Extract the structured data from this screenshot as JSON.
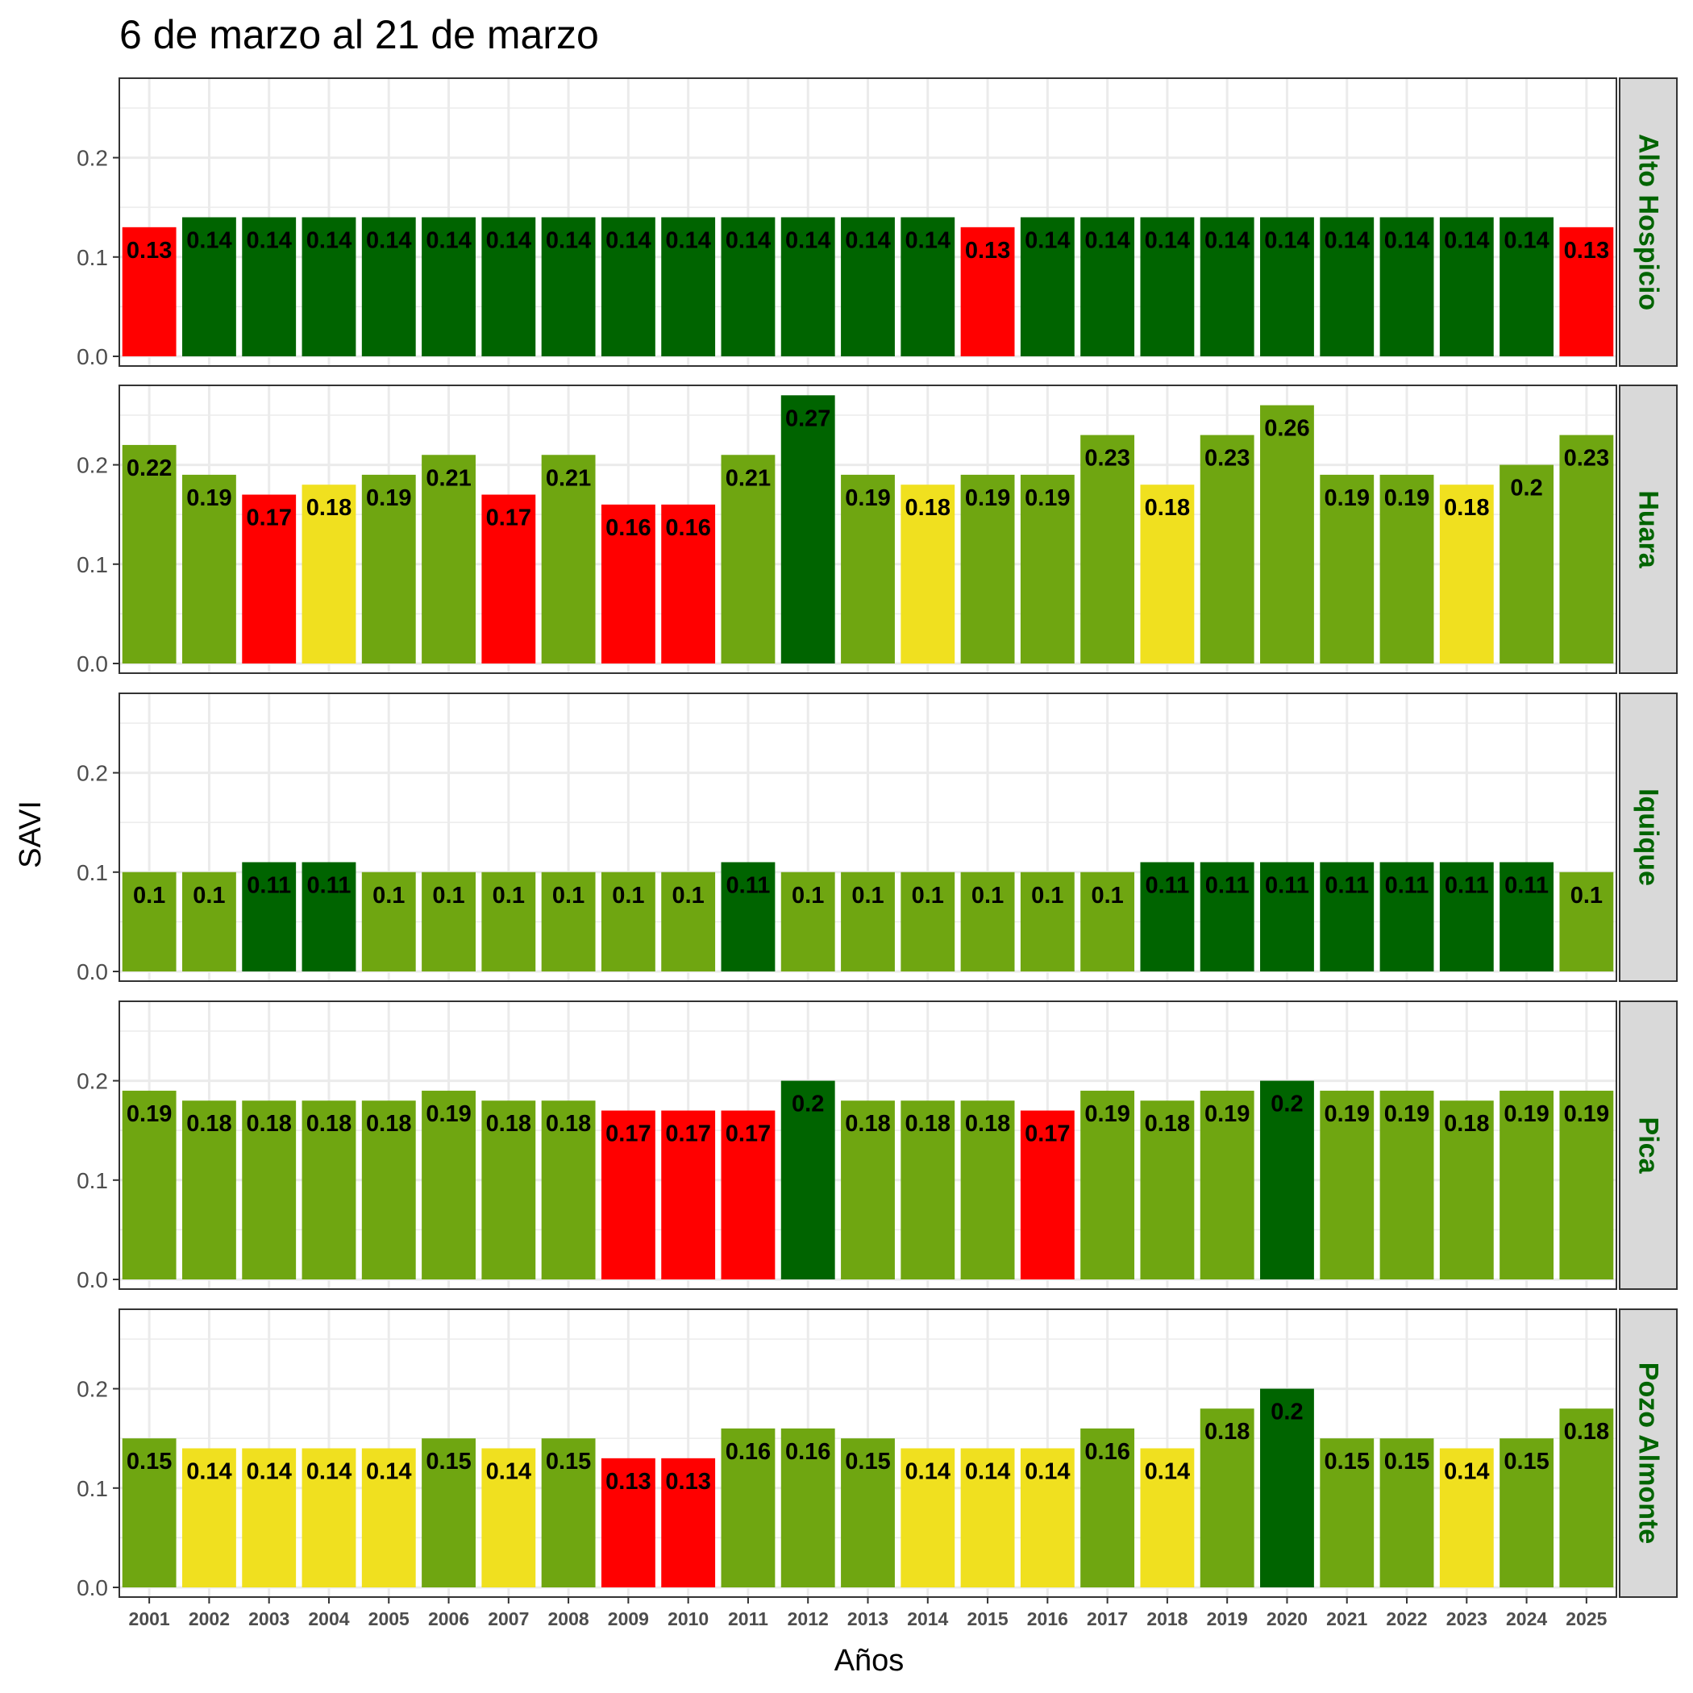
{
  "chart_data": {
    "type": "bar",
    "title": "6 de marzo al 21 de marzo",
    "xlabel": "Años",
    "ylabel": "SAVI",
    "ylim": [
      0,
      0.28
    ],
    "yticks": [
      "0.0",
      "0.1",
      "0.2"
    ],
    "ytick_values": [
      0,
      0.1,
      0.2
    ],
    "categories": [
      "2001",
      "2002",
      "2003",
      "2004",
      "2005",
      "2006",
      "2007",
      "2008",
      "2009",
      "2010",
      "2011",
      "2012",
      "2013",
      "2014",
      "2015",
      "2016",
      "2017",
      "2018",
      "2019",
      "2020",
      "2021",
      "2022",
      "2023",
      "2024",
      "2025"
    ],
    "grid": true,
    "colors": {
      "red": "#ff0000",
      "yellow": "#f0e01f",
      "light_green": "#6fa611",
      "dark_green": "#006400",
      "strip_bg": "#d9d9d9",
      "strip_text": "#006400",
      "grid": "#ebebeb",
      "panel_border": "#333333"
    },
    "series": [
      {
        "name": "Alto Hospicio",
        "values": [
          0.13,
          0.14,
          0.14,
          0.14,
          0.14,
          0.14,
          0.14,
          0.14,
          0.14,
          0.14,
          0.14,
          0.14,
          0.14,
          0.14,
          0.13,
          0.14,
          0.14,
          0.14,
          0.14,
          0.14,
          0.14,
          0.14,
          0.14,
          0.14,
          0.13
        ],
        "labels": [
          "0.13",
          "0.14",
          "0.14",
          "0.14",
          "0.14",
          "0.14",
          "0.14",
          "0.14",
          "0.14",
          "0.14",
          "0.14",
          "0.14",
          "0.14",
          "0.14",
          "0.13",
          "0.14",
          "0.14",
          "0.14",
          "0.14",
          "0.14",
          "0.14",
          "0.14",
          "0.14",
          "0.14",
          "0.13"
        ],
        "bar_colors": [
          "red",
          "dark_green",
          "dark_green",
          "dark_green",
          "dark_green",
          "dark_green",
          "dark_green",
          "dark_green",
          "dark_green",
          "dark_green",
          "dark_green",
          "dark_green",
          "dark_green",
          "dark_green",
          "red",
          "dark_green",
          "dark_green",
          "dark_green",
          "dark_green",
          "dark_green",
          "dark_green",
          "dark_green",
          "dark_green",
          "dark_green",
          "red"
        ]
      },
      {
        "name": "Huara",
        "values": [
          0.22,
          0.19,
          0.17,
          0.18,
          0.19,
          0.21,
          0.17,
          0.21,
          0.16,
          0.16,
          0.21,
          0.27,
          0.19,
          0.18,
          0.19,
          0.19,
          0.23,
          0.18,
          0.23,
          0.26,
          0.19,
          0.19,
          0.18,
          0.2,
          0.23
        ],
        "labels": [
          "0.22",
          "0.19",
          "0.17",
          "0.18",
          "0.19",
          "0.21",
          "0.17",
          "0.21",
          "0.16",
          "0.16",
          "0.21",
          "0.27",
          "0.19",
          "0.18",
          "0.19",
          "0.19",
          "0.23",
          "0.18",
          "0.23",
          "0.26",
          "0.19",
          "0.19",
          "0.18",
          "0.2",
          "0.23"
        ],
        "bar_colors": [
          "light_green",
          "light_green",
          "red",
          "yellow",
          "light_green",
          "light_green",
          "red",
          "light_green",
          "red",
          "red",
          "light_green",
          "dark_green",
          "light_green",
          "yellow",
          "light_green",
          "light_green",
          "light_green",
          "yellow",
          "light_green",
          "light_green",
          "light_green",
          "light_green",
          "yellow",
          "light_green",
          "light_green"
        ]
      },
      {
        "name": "Iquique",
        "values": [
          0.1,
          0.1,
          0.11,
          0.11,
          0.1,
          0.1,
          0.1,
          0.1,
          0.1,
          0.1,
          0.11,
          0.1,
          0.1,
          0.1,
          0.1,
          0.1,
          0.1,
          0.11,
          0.11,
          0.11,
          0.11,
          0.11,
          0.11,
          0.11,
          0.1
        ],
        "labels": [
          "0.1",
          "0.1",
          "0.11",
          "0.11",
          "0.1",
          "0.1",
          "0.1",
          "0.1",
          "0.1",
          "0.1",
          "0.11",
          "0.1",
          "0.1",
          "0.1",
          "0.1",
          "0.1",
          "0.1",
          "0.11",
          "0.11",
          "0.11",
          "0.11",
          "0.11",
          "0.11",
          "0.11",
          "0.1"
        ],
        "bar_colors": [
          "light_green",
          "light_green",
          "dark_green",
          "dark_green",
          "light_green",
          "light_green",
          "light_green",
          "light_green",
          "light_green",
          "light_green",
          "dark_green",
          "light_green",
          "light_green",
          "light_green",
          "light_green",
          "light_green",
          "light_green",
          "dark_green",
          "dark_green",
          "dark_green",
          "dark_green",
          "dark_green",
          "dark_green",
          "dark_green",
          "light_green"
        ]
      },
      {
        "name": "Pica",
        "values": [
          0.19,
          0.18,
          0.18,
          0.18,
          0.18,
          0.19,
          0.18,
          0.18,
          0.17,
          0.17,
          0.17,
          0.2,
          0.18,
          0.18,
          0.18,
          0.17,
          0.19,
          0.18,
          0.19,
          0.2,
          0.19,
          0.19,
          0.18,
          0.19,
          0.19
        ],
        "labels": [
          "0.19",
          "0.18",
          "0.18",
          "0.18",
          "0.18",
          "0.19",
          "0.18",
          "0.18",
          "0.17",
          "0.17",
          "0.17",
          "0.2",
          "0.18",
          "0.18",
          "0.18",
          "0.17",
          "0.19",
          "0.18",
          "0.19",
          "0.2",
          "0.19",
          "0.19",
          "0.18",
          "0.19",
          "0.19"
        ],
        "bar_colors": [
          "light_green",
          "light_green",
          "light_green",
          "light_green",
          "light_green",
          "light_green",
          "light_green",
          "light_green",
          "red",
          "red",
          "red",
          "dark_green",
          "light_green",
          "light_green",
          "light_green",
          "red",
          "light_green",
          "light_green",
          "light_green",
          "dark_green",
          "light_green",
          "light_green",
          "light_green",
          "light_green",
          "light_green"
        ]
      },
      {
        "name": "Pozo Almonte",
        "values": [
          0.15,
          0.14,
          0.14,
          0.14,
          0.14,
          0.15,
          0.14,
          0.15,
          0.13,
          0.13,
          0.16,
          0.16,
          0.15,
          0.14,
          0.14,
          0.14,
          0.16,
          0.14,
          0.18,
          0.2,
          0.15,
          0.15,
          0.14,
          0.15,
          0.18
        ],
        "labels": [
          "0.15",
          "0.14",
          "0.14",
          "0.14",
          "0.14",
          "0.15",
          "0.14",
          "0.15",
          "0.13",
          "0.13",
          "0.16",
          "0.16",
          "0.15",
          "0.14",
          "0.14",
          "0.14",
          "0.16",
          "0.14",
          "0.18",
          "0.2",
          "0.15",
          "0.15",
          "0.14",
          "0.15",
          "0.18"
        ],
        "bar_colors": [
          "light_green",
          "yellow",
          "yellow",
          "yellow",
          "yellow",
          "light_green",
          "yellow",
          "light_green",
          "red",
          "red",
          "light_green",
          "light_green",
          "light_green",
          "yellow",
          "yellow",
          "yellow",
          "light_green",
          "yellow",
          "light_green",
          "dark_green",
          "light_green",
          "light_green",
          "yellow",
          "light_green",
          "light_green"
        ]
      }
    ]
  }
}
